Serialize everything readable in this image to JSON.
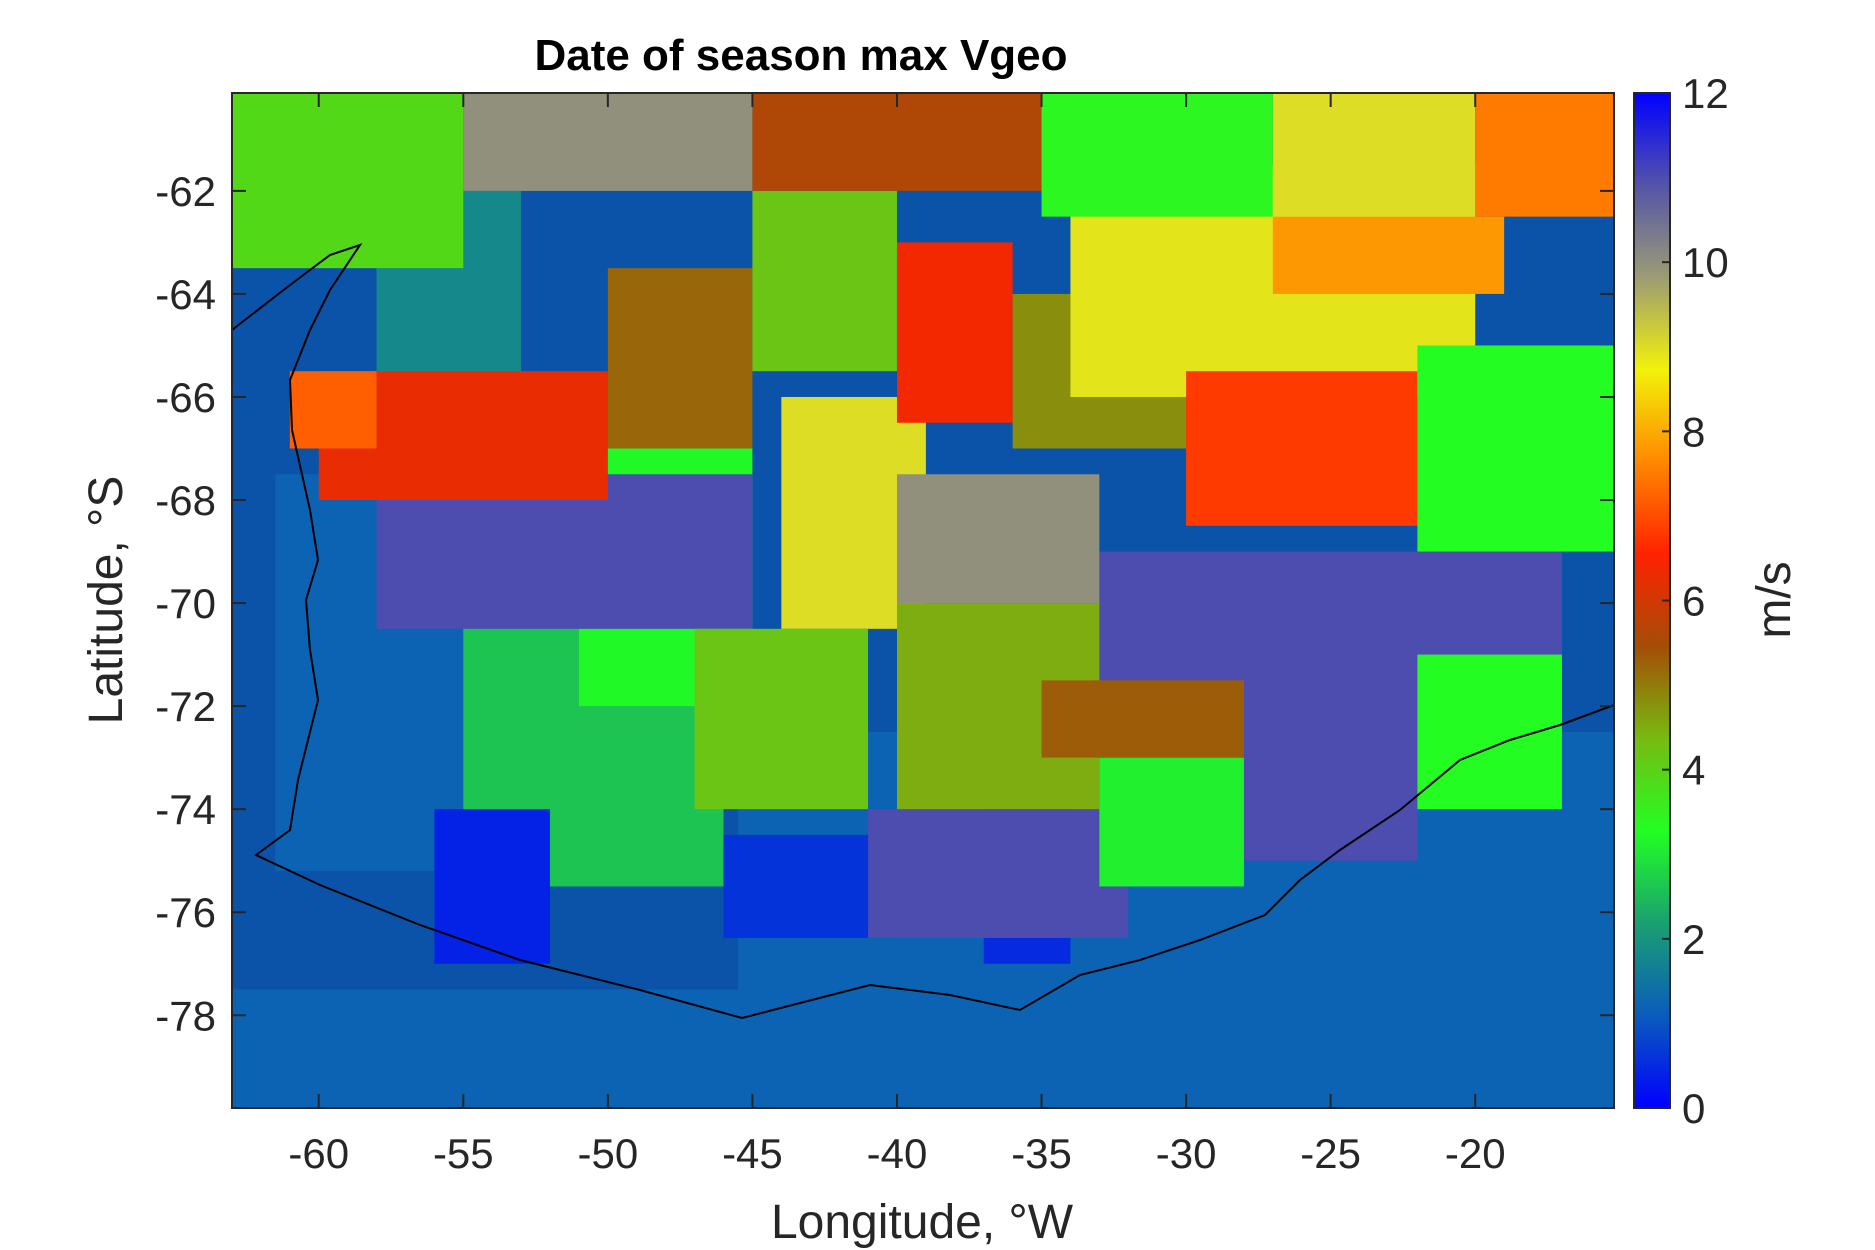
{
  "chart_data": {
    "type": "heatmap",
    "title": "Date of season max Vgeo",
    "xlabel": "Longitude, °W",
    "ylabel": "Latitude, °S",
    "xlim": [
      -63,
      -15.2
    ],
    "ylim": [
      -79.8,
      -60.1
    ],
    "xticks": [
      -60,
      -55,
      -50,
      -45,
      -40,
      -35,
      -30,
      -25,
      -20
    ],
    "xtick_labels": [
      "-60",
      "-55",
      "-50",
      "-45",
      "-40",
      "-35",
      "-30",
      "-25",
      "-20"
    ],
    "yticks": [
      -62,
      -64,
      -66,
      -68,
      -70,
      -72,
      -74,
      -76,
      -78
    ],
    "ytick_labels": [
      "-62",
      "-64",
      "-66",
      "-68",
      "-70",
      "-72",
      "-74",
      "-76",
      "-78"
    ],
    "colorbar": {
      "label": "m/s",
      "range": [
        0,
        12
      ],
      "ticks": [
        0,
        2,
        4,
        6,
        8,
        10,
        12
      ],
      "tick_labels": [
        "0",
        "2",
        "4",
        "6",
        "8",
        "10",
        "12"
      ],
      "colormap": [
        "#0000ff",
        "#0a5cbc",
        "#1aa070",
        "#22ff22",
        "#77bb11",
        "#a34e07",
        "#ff2200",
        "#ff8800",
        "#f2f20a",
        "#9c9c74",
        "#5454a8",
        "#0000ff"
      ]
    },
    "ocean_color": "#0a53a8",
    "regions": [
      {
        "lon": [
          -61.5,
          -54
        ],
        "lat": [
          -75.2,
          -67.5
        ],
        "value": 1.2
      },
      {
        "lon": [
          -45.5,
          -15.2
        ],
        "lat": [
          -79.8,
          -72.5
        ],
        "value": 1.2
      },
      {
        "lon": [
          -63,
          -15.2
        ],
        "lat": [
          -79.8,
          -77.5
        ],
        "value": 1.2
      },
      {
        "lon": [
          -55,
          -46
        ],
        "lat": [
          -75.5,
          -68
        ],
        "value": 2.6
      },
      {
        "lon": [
          -58,
          -53
        ],
        "lat": [
          -66.5,
          -62
        ],
        "value": 1.8
      },
      {
        "lon": [
          -51,
          -45
        ],
        "lat": [
          -72,
          -67
        ],
        "value": 3.2
      },
      {
        "lon": [
          -56,
          -52
        ],
        "lat": [
          -77,
          -74
        ],
        "value": 0.4
      },
      {
        "lon": [
          -46,
          -40
        ],
        "lat": [
          -76.5,
          -74.5
        ],
        "value": 0.6
      },
      {
        "lon": [
          -37,
          -34
        ],
        "lat": [
          -77,
          -69
        ],
        "value": 0.5
      },
      {
        "lon": [
          -41,
          -32
        ],
        "lat": [
          -76.5,
          -74
        ],
        "value": 11
      },
      {
        "lon": [
          -58,
          -45
        ],
        "lat": [
          -70.5,
          -67.5
        ],
        "value": 11
      },
      {
        "lon": [
          -33,
          -17
        ],
        "lat": [
          -72.5,
          -69
        ],
        "value": 11
      },
      {
        "lon": [
          -30,
          -22
        ],
        "lat": [
          -75,
          -72
        ],
        "value": 11
      },
      {
        "lon": [
          -44,
          -39
        ],
        "lat": [
          -70.5,
          -66
        ],
        "value": 9
      },
      {
        "lon": [
          -40,
          -33
        ],
        "lat": [
          -70,
          -67.5
        ],
        "value": 10
      },
      {
        "lon": [
          -47,
          -41
        ],
        "lat": [
          -74,
          -70.5
        ],
        "value": 4.2
      },
      {
        "lon": [
          -40,
          -33
        ],
        "lat": [
          -74,
          -70
        ],
        "value": 4.5
      },
      {
        "lon": [
          -33,
          -28
        ],
        "lat": [
          -75.5,
          -73
        ],
        "value": 3.1
      },
      {
        "lon": [
          -35,
          -28
        ],
        "lat": [
          -73,
          -71.5
        ],
        "value": 5.3
      },
      {
        "lon": [
          -22,
          -17
        ],
        "lat": [
          -74,
          -71
        ],
        "value": 3.3
      },
      {
        "lon": [
          -60,
          -50
        ],
        "lat": [
          -68,
          -65.5
        ],
        "value": 6.3
      },
      {
        "lon": [
          -61,
          -58
        ],
        "lat": [
          -67,
          -65.5
        ],
        "value": 7.2
      },
      {
        "lon": [
          -50,
          -45
        ],
        "lat": [
          -67,
          -63.5
        ],
        "value": 5.2
      },
      {
        "lon": [
          -45,
          -40
        ],
        "lat": [
          -65.5,
          -62
        ],
        "value": 4.2
      },
      {
        "lon": [
          -40,
          -36
        ],
        "lat": [
          -66.5,
          -63
        ],
        "value": 6.4
      },
      {
        "lon": [
          -36,
          -30
        ],
        "lat": [
          -67,
          -64
        ],
        "value": 4.8
      },
      {
        "lon": [
          -34,
          -20
        ],
        "lat": [
          -66,
          -61.5
        ],
        "value": 8.9
      },
      {
        "lon": [
          -27,
          -19
        ],
        "lat": [
          -64,
          -62.5
        ],
        "value": 7.8
      },
      {
        "lon": [
          -30,
          -22
        ],
        "lat": [
          -68.5,
          -65.5
        ],
        "value": 6.8
      },
      {
        "lon": [
          -22,
          -15.2
        ],
        "lat": [
          -69,
          -65
        ],
        "value": 3.3
      },
      {
        "lon": [
          -63,
          -55
        ],
        "lat": [
          -63.5,
          -60.1
        ],
        "value": 3.9
      },
      {
        "lon": [
          -55,
          -45
        ],
        "lat": [
          -62,
          -60.1
        ],
        "value": 10
      },
      {
        "lon": [
          -45,
          -35
        ],
        "lat": [
          -62,
          -60.1
        ],
        "value": 5.6
      },
      {
        "lon": [
          -35,
          -27
        ],
        "lat": [
          -62.5,
          -60.1
        ],
        "value": 3.4
      },
      {
        "lon": [
          -27,
          -20
        ],
        "lat": [
          -62.5,
          -60.1
        ],
        "value": 9
      },
      {
        "lon": [
          -20,
          -15.2
        ],
        "lat": [
          -62.5,
          -60.1
        ],
        "value": 7.5
      }
    ]
  }
}
